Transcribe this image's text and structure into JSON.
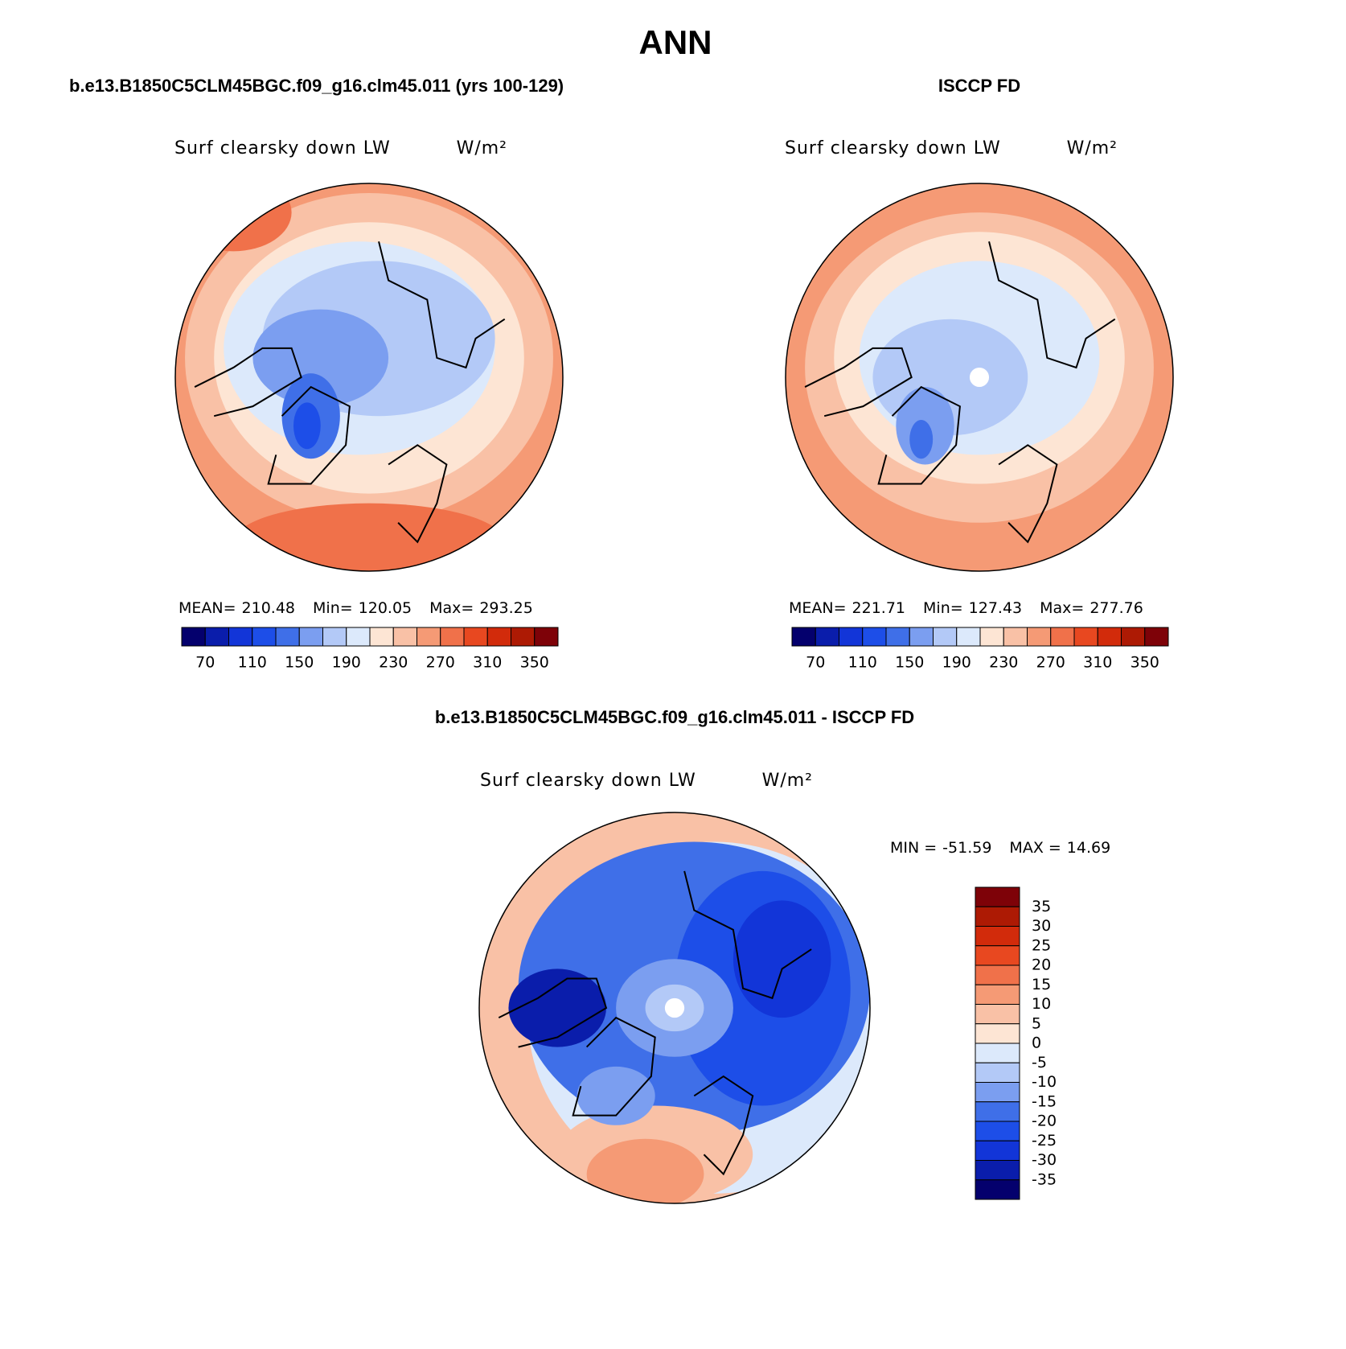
{
  "title": "ANN",
  "panels": [
    {
      "case": "b.e13.B1850C5CLM45BGC.f09_g16.clm45.011 (yrs 100-129)",
      "variable": "Surf clearsky down LW",
      "units": "W/m²",
      "stats": [
        {
          "label": "MEAN=",
          "value": 210.48
        },
        {
          "label": "Min=",
          "value": 120.05
        },
        {
          "label": "Max=",
          "value": 293.25
        }
      ],
      "colorbar": {
        "orientation": "horizontal",
        "labels": [
          70,
          110,
          150,
          190,
          230,
          270,
          310,
          350
        ],
        "colors": [
          "#04006d",
          "#0a1dab",
          "#1235d8",
          "#1d4ee8",
          "#3f6fe8",
          "#7b9ef0",
          "#b3c9f7",
          "#dce9fb",
          "#fde5d4",
          "#f9c1a6",
          "#f59a75",
          "#f0714a",
          "#e84820",
          "#d22b0b",
          "#ad1a04",
          "#7e0208"
        ]
      }
    },
    {
      "case": "ISCCP FD",
      "variable": "Surf clearsky down LW",
      "units": "W/m²",
      "stats": [
        {
          "label": "MEAN=",
          "value": 221.71
        },
        {
          "label": "Min=",
          "value": 127.43
        },
        {
          "label": "Max=",
          "value": 277.76
        }
      ],
      "colorbar": {
        "orientation": "horizontal",
        "labels": [
          70,
          110,
          150,
          190,
          230,
          270,
          310,
          350
        ],
        "colors": [
          "#04006d",
          "#0a1dab",
          "#1235d8",
          "#1d4ee8",
          "#3f6fe8",
          "#7b9ef0",
          "#b3c9f7",
          "#dce9fb",
          "#fde5d4",
          "#f9c1a6",
          "#f59a75",
          "#f0714a",
          "#e84820",
          "#d22b0b",
          "#ad1a04",
          "#7e0208"
        ]
      }
    },
    {
      "case": "b.e13.B1850C5CLM45BGC.f09_g16.clm45.011 - ISCCP FD",
      "variable": "Surf clearsky down LW",
      "units": "W/m²",
      "stats": [
        {
          "label": "MIN =",
          "value": -51.59
        },
        {
          "label": "MAX =",
          "value": 14.69
        }
      ],
      "colorbar": {
        "orientation": "vertical",
        "labels": [
          35,
          30,
          25,
          20,
          15,
          10,
          5,
          0,
          -5,
          -10,
          -15,
          -20,
          -25,
          -30,
          -35
        ],
        "colors": [
          "#7e0208",
          "#ad1a04",
          "#d22b0b",
          "#e84820",
          "#f0714a",
          "#f59a75",
          "#f9c1a6",
          "#fde5d4",
          "#dce9fb",
          "#b3c9f7",
          "#7b9ef0",
          "#3f6fe8",
          "#1d4ee8",
          "#1235d8",
          "#0a1dab",
          "#04006d"
        ]
      }
    }
  ]
}
